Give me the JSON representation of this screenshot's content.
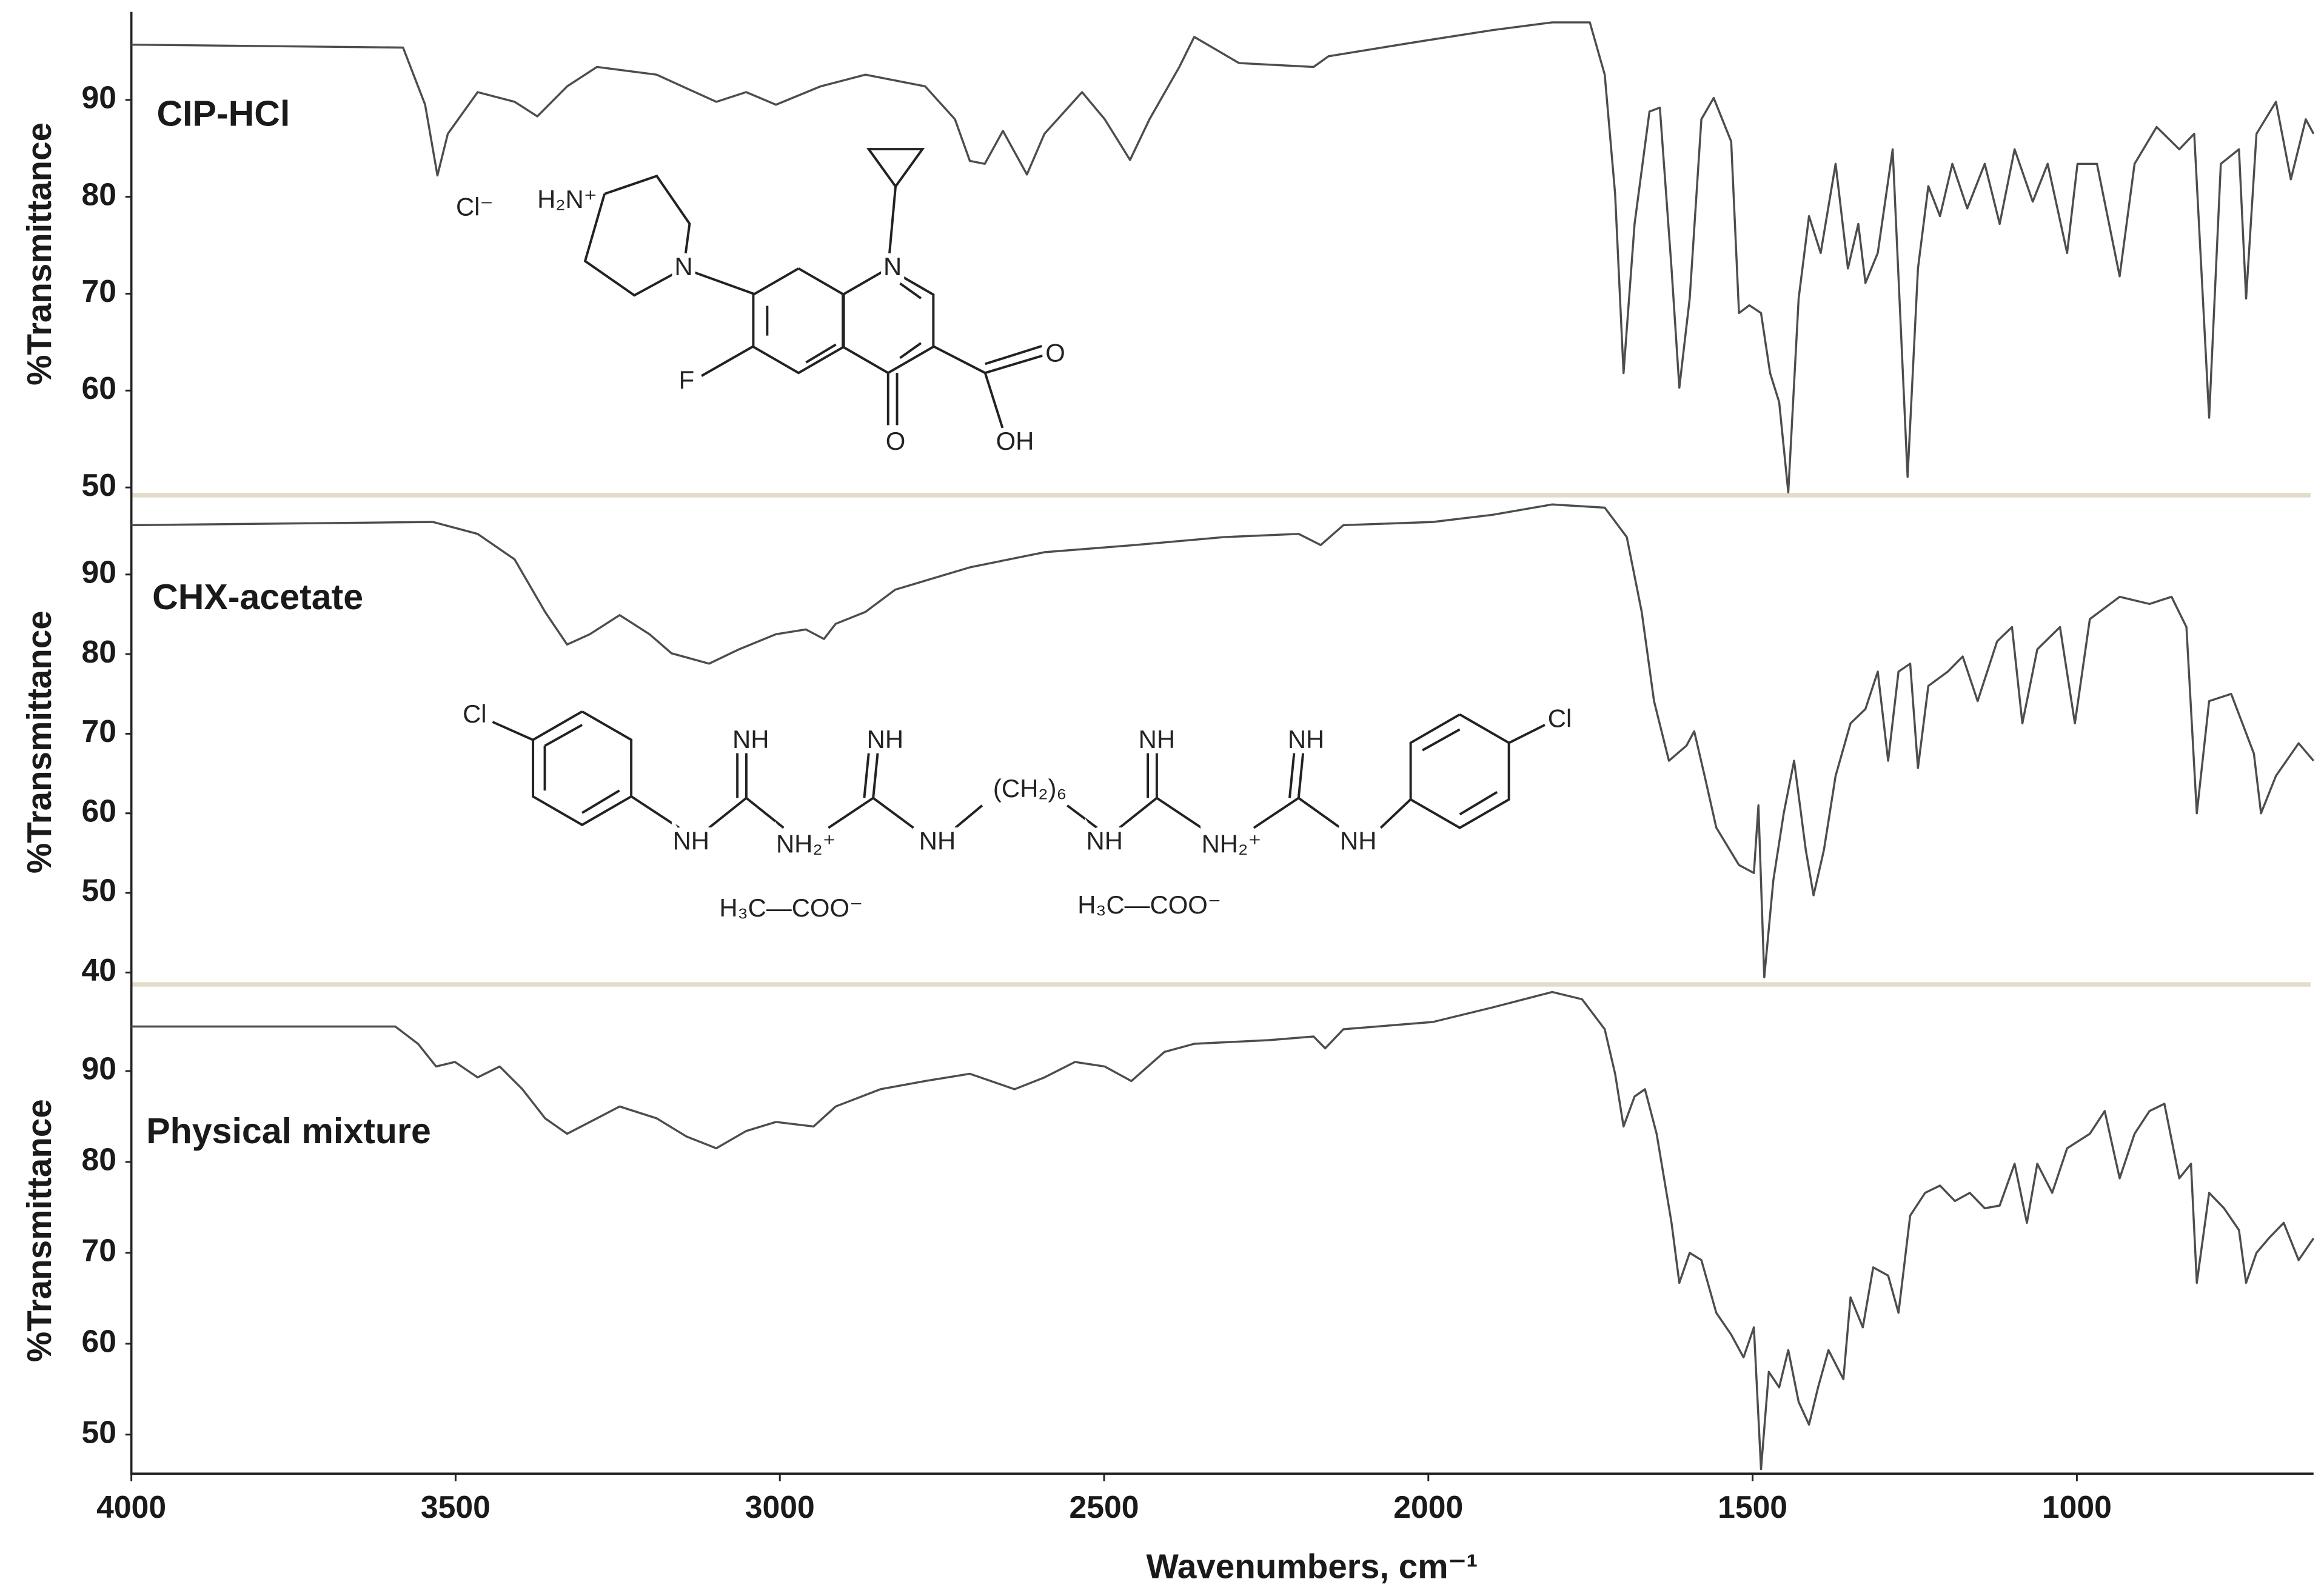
{
  "chart_data": [
    {
      "type": "line",
      "title": "CIP-HCl",
      "ylabel": "%Transmittance",
      "color": "#4d4d4d",
      "xlim": [
        4000,
        635
      ],
      "ylim": [
        49.2,
        99
      ],
      "yticks": [
        50,
        60,
        70,
        80,
        90
      ],
      "annotations": [
        "Cl⁻",
        "H₂N⁺",
        "N",
        "N",
        "F",
        "O",
        "O",
        "OH"
      ],
      "x": [
        4000,
        3581,
        3547,
        3528,
        3512,
        3466,
        3409,
        3374,
        3328,
        3282,
        3190,
        3098,
        3052,
        3006,
        2937,
        2868,
        2776,
        2730,
        2707,
        2684,
        2656,
        2619,
        2592,
        2534,
        2499,
        2460,
        2430,
        2384,
        2361,
        2292,
        2177,
        2154,
        2016,
        1901,
        1809,
        1751,
        1728,
        1712,
        1699,
        1682,
        1659,
        1643,
        1625,
        1613,
        1597,
        1579,
        1560,
        1533,
        1521,
        1505,
        1487,
        1473,
        1459,
        1445,
        1429,
        1413,
        1395,
        1372,
        1353,
        1337,
        1326,
        1307,
        1284,
        1261,
        1245,
        1229,
        1211,
        1192,
        1169,
        1142,
        1119,
        1096,
        1068,
        1045,
        1015,
        999,
        969,
        934,
        911,
        877,
        842,
        819,
        796,
        778,
        750,
        739,
        723,
        693,
        670,
        647,
        635
      ],
      "values": [
        95.7,
        95.4,
        89.5,
        82.2,
        86.5,
        90.8,
        89.8,
        88.3,
        91.4,
        93.4,
        92.6,
        89.8,
        90.8,
        89.5,
        91.4,
        92.6,
        91.4,
        88.0,
        83.7,
        83.4,
        86.8,
        82.3,
        86.5,
        90.8,
        88.0,
        83.8,
        88.0,
        93.4,
        96.5,
        93.8,
        93.4,
        94.5,
        96.0,
        97.2,
        98.0,
        98.0,
        92.6,
        80.3,
        61.8,
        77.2,
        88.8,
        89.2,
        72.6,
        60.3,
        69.5,
        88.0,
        90.2,
        85.7,
        68.0,
        68.8,
        68.0,
        61.8,
        58.8,
        49.5,
        69.5,
        78.0,
        74.2,
        83.4,
        72.6,
        77.2,
        71.1,
        74.2,
        84.9,
        51.1,
        72.6,
        81.1,
        78.0,
        83.4,
        78.8,
        83.4,
        77.2,
        84.9,
        79.5,
        83.4,
        74.2,
        83.4,
        83.4,
        71.8,
        83.4,
        87.2,
        84.9,
        86.5,
        57.2,
        83.4,
        84.9,
        69.5,
        86.5,
        89.8,
        81.8,
        88.0,
        86.5
      ]
    },
    {
      "type": "line",
      "title": "CHX-acetate",
      "ylabel": "%Transmittance",
      "color": "#4d4d4d",
      "xlim": [
        4000,
        635
      ],
      "ylim": [
        38.5,
        99.4
      ],
      "yticks": [
        40,
        50,
        60,
        70,
        80,
        90
      ],
      "annotations": [
        "Cl",
        "NH",
        "NH",
        "NH₂⁺",
        "NH",
        "NH",
        "(CH₂)₆",
        "NH",
        "NH",
        "NH₂⁺",
        "NH",
        "NH",
        "Cl",
        "H₃C—COO⁻",
        "H₃C—COO⁻"
      ],
      "x": [
        4000,
        3535,
        3466,
        3409,
        3362,
        3328,
        3293,
        3247,
        3201,
        3167,
        3109,
        3063,
        3006,
        2960,
        2932,
        2914,
        2868,
        2822,
        2707,
        2592,
        2453,
        2315,
        2200,
        2166,
        2131,
        1993,
        1901,
        1809,
        1728,
        1694,
        1671,
        1652,
        1629,
        1602,
        1590,
        1574,
        1556,
        1521,
        1498,
        1491,
        1482,
        1468,
        1452,
        1436,
        1418,
        1406,
        1390,
        1372,
        1349,
        1326,
        1307,
        1291,
        1275,
        1257,
        1245,
        1229,
        1199,
        1176,
        1153,
        1123,
        1100,
        1084,
        1061,
        1026,
        1003,
        980,
        934,
        888,
        854,
        831,
        815,
        796,
        762,
        727,
        716,
        693,
        658,
        635
      ],
      "values": [
        96.2,
        96.6,
        95.1,
        91.9,
        85.3,
        81.2,
        82.5,
        84.9,
        82.5,
        80.1,
        78.8,
        80.6,
        82.5,
        83.1,
        81.9,
        83.8,
        85.3,
        88.1,
        90.9,
        92.8,
        93.7,
        94.7,
        95.1,
        93.7,
        96.2,
        96.6,
        97.5,
        98.8,
        98.4,
        94.7,
        85.3,
        74.1,
        66.6,
        68.5,
        70.3,
        64.7,
        58.2,
        53.5,
        52.5,
        61.0,
        39.4,
        51.6,
        60.0,
        66.6,
        55.4,
        49.7,
        55.4,
        64.7,
        71.3,
        73.1,
        77.8,
        66.6,
        77.8,
        78.8,
        65.7,
        76.0,
        77.8,
        79.7,
        74.1,
        81.6,
        83.4,
        71.3,
        80.6,
        83.4,
        71.3,
        84.4,
        87.2,
        86.3,
        87.2,
        83.4,
        60.0,
        74.1,
        75.0,
        67.5,
        60.0,
        64.7,
        68.8,
        66.6
      ]
    },
    {
      "type": "line",
      "title": "Physical mixture",
      "ylabel": "%Transmittance",
      "color": "#4d4d4d",
      "xlim": [
        4000,
        635
      ],
      "ylim": [
        45.7,
        99.2
      ],
      "yticks": [
        50,
        60,
        70,
        80,
        90
      ],
      "xticks": [
        4000,
        3500,
        3000,
        2500,
        2000,
        1500,
        1000
      ],
      "xlabel": "Wavenumbers, cm⁻¹",
      "x": [
        4000,
        3593,
        3558,
        3530,
        3501,
        3466,
        3432,
        3397,
        3362,
        3328,
        3282,
        3247,
        3190,
        3144,
        3098,
        3052,
        3006,
        2948,
        2914,
        2845,
        2776,
        2707,
        2638,
        2592,
        2545,
        2499,
        2458,
        2407,
        2361,
        2246,
        2177,
        2159,
        2131,
        1993,
        1901,
        1809,
        1763,
        1728,
        1712,
        1699,
        1682,
        1666,
        1648,
        1625,
        1613,
        1597,
        1579,
        1556,
        1533,
        1514,
        1498,
        1487,
        1475,
        1459,
        1445,
        1429,
        1413,
        1399,
        1383,
        1360,
        1349,
        1330,
        1314,
        1291,
        1275,
        1257,
        1234,
        1211,
        1188,
        1165,
        1142,
        1119,
        1096,
        1077,
        1061,
        1038,
        1015,
        980,
        957,
        934,
        911,
        888,
        865,
        842,
        824,
        815,
        796,
        773,
        750,
        739,
        723,
        704,
        681,
        658,
        635
      ],
      "values": [
        94.9,
        94.9,
        93.0,
        90.5,
        91.0,
        89.3,
        90.5,
        88.0,
        84.8,
        83.1,
        84.8,
        86.1,
        84.8,
        82.8,
        81.5,
        83.4,
        84.4,
        83.9,
        86.1,
        88.0,
        88.9,
        89.7,
        88.0,
        89.3,
        91.0,
        90.5,
        88.9,
        92.1,
        93.0,
        93.4,
        93.8,
        92.5,
        94.6,
        95.4,
        97.0,
        98.7,
        97.9,
        94.6,
        89.7,
        83.9,
        87.2,
        88.0,
        83.1,
        73.3,
        66.7,
        70.0,
        69.2,
        63.4,
        61.0,
        58.5,
        61.8,
        46.2,
        56.9,
        55.2,
        59.3,
        53.6,
        51.1,
        55.2,
        59.3,
        56.1,
        65.1,
        61.8,
        68.4,
        67.5,
        63.4,
        74.1,
        76.6,
        77.4,
        75.7,
        76.6,
        74.9,
        75.2,
        79.8,
        73.3,
        79.8,
        76.6,
        81.5,
        83.1,
        85.6,
        78.2,
        83.1,
        85.6,
        86.4,
        78.2,
        79.8,
        66.7,
        76.6,
        74.9,
        72.5,
        66.7,
        70.0,
        71.6,
        73.3,
        69.2,
        71.6
      ]
    }
  ]
}
